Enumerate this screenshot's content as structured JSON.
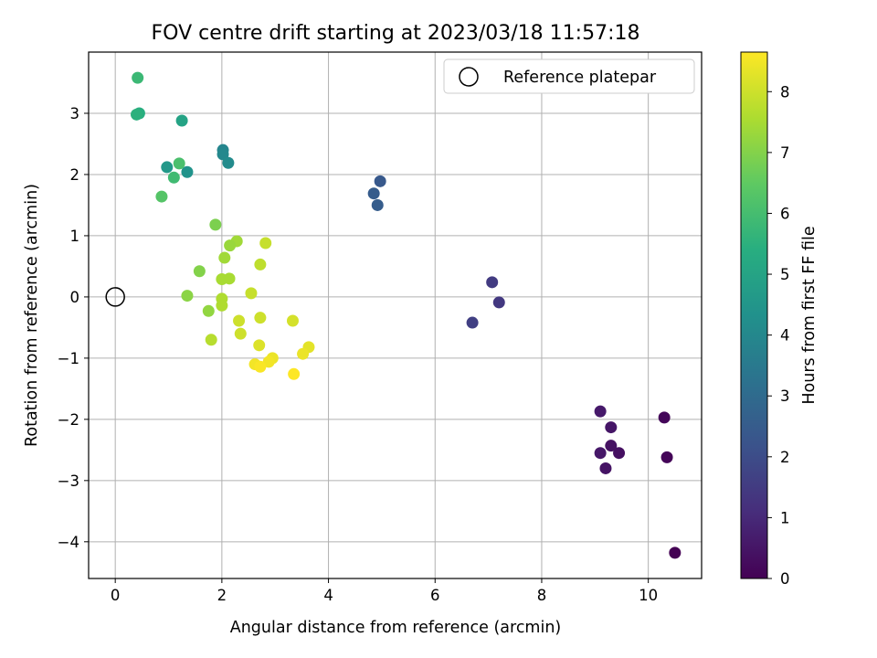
{
  "chart_data": {
    "type": "scatter",
    "title": "FOV centre drift starting at 2023/03/18 11:57:18",
    "xlabel": "Angular distance from reference (arcmin)",
    "ylabel": "Rotation from reference (arcmin)",
    "xlim": [
      -0.5,
      11.0
    ],
    "ylim": [
      -4.6,
      4.0
    ],
    "xticks": [
      0,
      2,
      4,
      6,
      8,
      10
    ],
    "yticks": [
      -4,
      -3,
      -2,
      -1,
      0,
      1,
      2,
      3
    ],
    "grid": true,
    "legend": {
      "position": "top-right",
      "entries": [
        "Reference platepar"
      ]
    },
    "reference_point": {
      "x": 0,
      "y": 0
    },
    "colorbar": {
      "label": "Hours from first FF file",
      "colormap": "viridis",
      "range": [
        0,
        8.65
      ],
      "ticks": [
        0,
        1,
        2,
        3,
        4,
        5,
        6,
        7,
        8
      ]
    },
    "points": [
      {
        "x": 10.5,
        "y": -4.18,
        "c": 0.0
      },
      {
        "x": 10.35,
        "y": -2.62,
        "c": 0.1
      },
      {
        "x": 10.3,
        "y": -1.97,
        "c": 0.15
      },
      {
        "x": 9.45,
        "y": -2.55,
        "c": 0.35
      },
      {
        "x": 9.3,
        "y": -2.43,
        "c": 0.4
      },
      {
        "x": 9.2,
        "y": -2.8,
        "c": 0.45
      },
      {
        "x": 9.3,
        "y": -2.13,
        "c": 0.5
      },
      {
        "x": 9.1,
        "y": -2.55,
        "c": 0.55
      },
      {
        "x": 9.1,
        "y": -1.87,
        "c": 0.6
      },
      {
        "x": 7.2,
        "y": -0.09,
        "c": 1.4
      },
      {
        "x": 7.07,
        "y": 0.24,
        "c": 1.5
      },
      {
        "x": 6.7,
        "y": -0.42,
        "c": 1.6
      },
      {
        "x": 4.97,
        "y": 1.89,
        "c": 2.4
      },
      {
        "x": 4.85,
        "y": 1.69,
        "c": 2.5
      },
      {
        "x": 4.92,
        "y": 1.5,
        "c": 2.55
      },
      {
        "x": 2.02,
        "y": 2.4,
        "c": 3.9
      },
      {
        "x": 2.02,
        "y": 2.33,
        "c": 4.0
      },
      {
        "x": 2.12,
        "y": 2.19,
        "c": 4.1
      },
      {
        "x": 1.35,
        "y": 2.04,
        "c": 4.4
      },
      {
        "x": 0.97,
        "y": 2.12,
        "c": 4.6
      },
      {
        "x": 1.25,
        "y": 2.88,
        "c": 5.0
      },
      {
        "x": 0.45,
        "y": 3.0,
        "c": 5.4
      },
      {
        "x": 0.4,
        "y": 2.98,
        "c": 5.5
      },
      {
        "x": 0.42,
        "y": 3.58,
        "c": 5.8
      },
      {
        "x": 1.1,
        "y": 1.95,
        "c": 5.9
      },
      {
        "x": 1.2,
        "y": 2.18,
        "c": 6.1
      },
      {
        "x": 0.87,
        "y": 1.64,
        "c": 6.3
      },
      {
        "x": 1.88,
        "y": 1.18,
        "c": 6.9
      },
      {
        "x": 1.58,
        "y": 0.42,
        "c": 7.0
      },
      {
        "x": 1.35,
        "y": 0.02,
        "c": 7.1
      },
      {
        "x": 1.75,
        "y": -0.23,
        "c": 7.2
      },
      {
        "x": 2.28,
        "y": 0.91,
        "c": 7.4
      },
      {
        "x": 2.15,
        "y": 0.84,
        "c": 7.3
      },
      {
        "x": 2.05,
        "y": 0.64,
        "c": 7.4
      },
      {
        "x": 2.0,
        "y": 0.29,
        "c": 7.5
      },
      {
        "x": 2.14,
        "y": 0.3,
        "c": 7.5
      },
      {
        "x": 2.0,
        "y": -0.03,
        "c": 7.6
      },
      {
        "x": 2.0,
        "y": -0.14,
        "c": 7.6
      },
      {
        "x": 1.8,
        "y": -0.7,
        "c": 7.7
      },
      {
        "x": 2.72,
        "y": 0.53,
        "c": 7.8
      },
      {
        "x": 2.82,
        "y": 0.88,
        "c": 7.9
      },
      {
        "x": 2.55,
        "y": 0.06,
        "c": 7.9
      },
      {
        "x": 2.32,
        "y": -0.39,
        "c": 8.0
      },
      {
        "x": 2.35,
        "y": -0.6,
        "c": 8.0
      },
      {
        "x": 2.72,
        "y": -0.34,
        "c": 8.0
      },
      {
        "x": 3.33,
        "y": -0.39,
        "c": 8.1
      },
      {
        "x": 2.7,
        "y": -0.79,
        "c": 8.2
      },
      {
        "x": 3.63,
        "y": -0.82,
        "c": 8.3
      },
      {
        "x": 3.52,
        "y": -0.93,
        "c": 8.4
      },
      {
        "x": 2.95,
        "y": -1.0,
        "c": 8.4
      },
      {
        "x": 2.88,
        "y": -1.06,
        "c": 8.5
      },
      {
        "x": 2.62,
        "y": -1.1,
        "c": 8.5
      },
      {
        "x": 2.72,
        "y": -1.14,
        "c": 8.6
      },
      {
        "x": 3.35,
        "y": -1.26,
        "c": 8.65
      }
    ]
  }
}
